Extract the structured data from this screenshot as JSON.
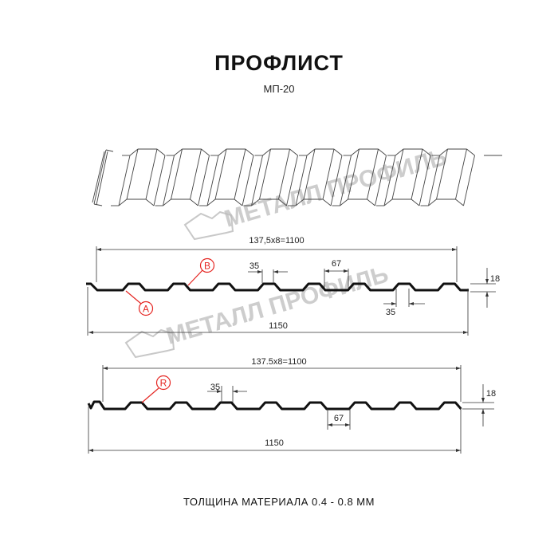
{
  "title": "ПРОФЛИСТ",
  "subtitle": "МП-20",
  "footer": "ТОЛЩИНА МАТЕРИАЛА 0.4 - 0.8 ММ",
  "watermark": "МЕТАЛЛ ПРОФИЛЬ",
  "colors": {
    "profile": "#111111",
    "marker": "#e52521",
    "watermark": "#bdbdbd"
  },
  "profile1": {
    "pitch_label": "137,5х8=1100",
    "width_label": "1150",
    "top_label": "35",
    "bottom_label": "67",
    "bottom_top_label": "35",
    "height_label": "18",
    "marker_a": "A",
    "marker_b": "B"
  },
  "profile2": {
    "pitch_label": "137.5x8=1100",
    "width_label": "1150",
    "top_label": "35",
    "bottom_label": "67",
    "height_label": "18",
    "marker_r": "R"
  }
}
